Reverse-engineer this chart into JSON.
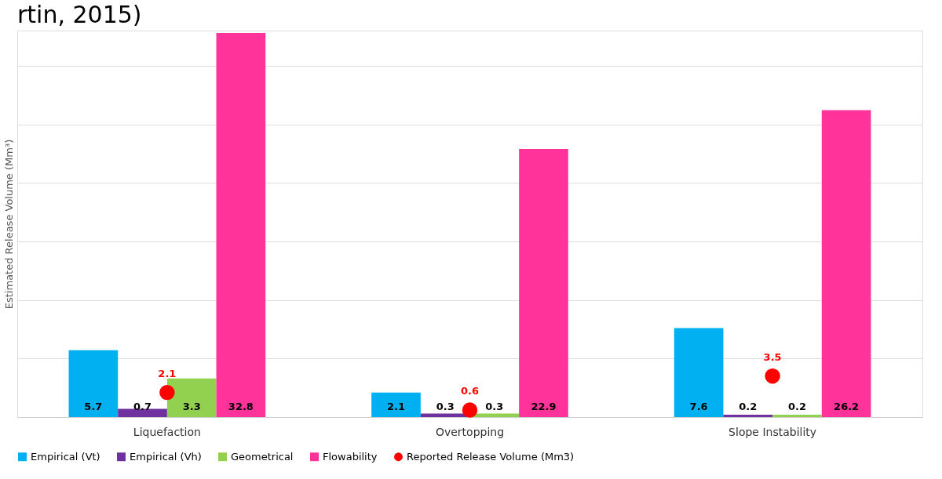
{
  "chart_data": {
    "type": "bar",
    "title": "rtin, 2015)",
    "ylabel": "Estimated Release Volume (Mm³)",
    "categories": [
      "Liquefaction",
      "Overtopping",
      "Slope Instability"
    ],
    "series": [
      {
        "name": "Empirical (Vt)",
        "color": "#00b0f0",
        "values": [
          5.7,
          2.1,
          7.6
        ]
      },
      {
        "name": "Empirical (Vh)",
        "color": "#7030a0",
        "values": [
          0.7,
          0.3,
          0.2
        ]
      },
      {
        "name": "Geometrical",
        "color": "#92d050",
        "values": [
          3.3,
          0.3,
          0.2
        ]
      },
      {
        "name": "Flowability",
        "color": "#ff3399",
        "values": [
          32.8,
          22.9,
          26.2
        ]
      },
      {
        "name": "Reported Release Volume (Mm3)",
        "type": "scatter",
        "color": "#ff0000",
        "marker": "circle",
        "x": [
          "Liquefaction",
          "Overtopping",
          "Slope Instability"
        ],
        "values": [
          2.1,
          0.6,
          3.5
        ],
        "value_labels": [
          "2.1",
          "0.6",
          "3.5"
        ]
      }
    ],
    "ylim": [
      0,
      33
    ],
    "yticks": [
      {
        "value": 0,
        "label": null
      },
      {
        "value": 5,
        "label": null
      },
      {
        "value": 10,
        "label": null
      },
      {
        "value": 15,
        "label": null
      },
      {
        "value": 20,
        "label": null
      },
      {
        "value": 25,
        "label": null
      },
      {
        "value": 30,
        "label": null
      }
    ],
    "tick_labels": "x",
    "grid": "y",
    "legend": "bottom",
    "data_labels": true
  }
}
